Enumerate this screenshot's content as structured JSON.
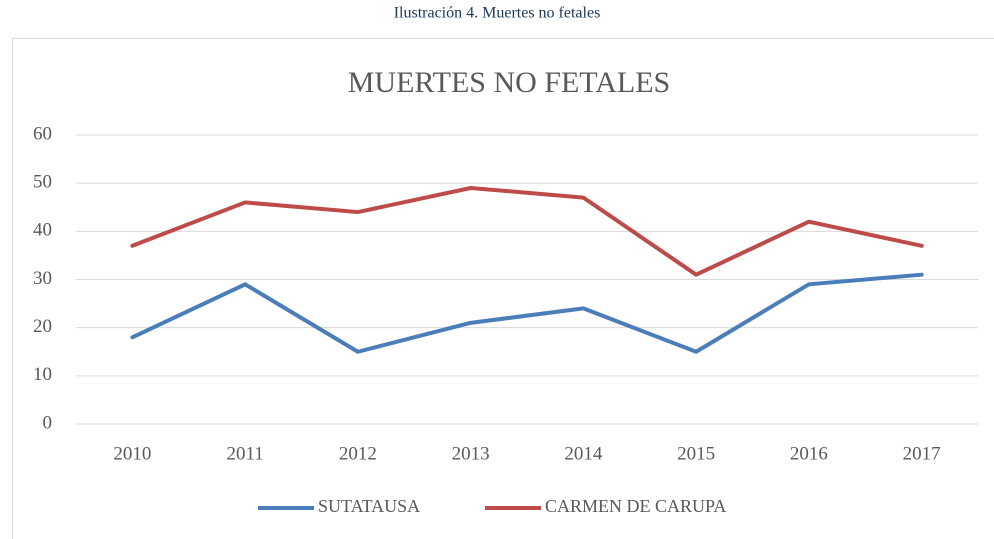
{
  "caption": "Ilustración 4. Muertes no fetales",
  "chart_data": {
    "type": "line",
    "title": "MUERTES NO FETALES",
    "categories": [
      "2010",
      "2011",
      "2012",
      "2013",
      "2014",
      "2015",
      "2016",
      "2017"
    ],
    "series": [
      {
        "name": "SUTATAUSA",
        "color": "#4a7ebb",
        "values": [
          18,
          29,
          15,
          21,
          24,
          15,
          29,
          31
        ]
      },
      {
        "name": "CARMEN DE CARUPA",
        "color": "#be4b48",
        "values": [
          37,
          46,
          44,
          49,
          47,
          31,
          42,
          37
        ]
      }
    ],
    "ylim": [
      0,
      60
    ],
    "yticks": [
      0,
      10,
      20,
      30,
      40,
      50,
      60
    ],
    "grid": true,
    "legend": "bottom"
  }
}
